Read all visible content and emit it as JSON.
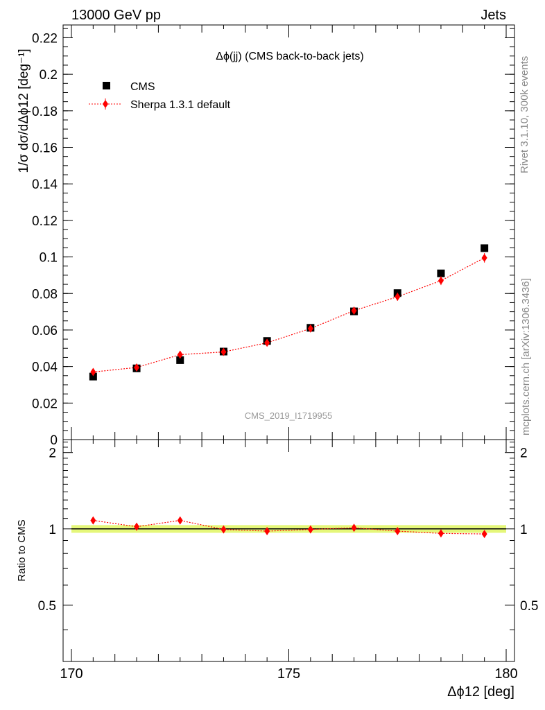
{
  "header": {
    "left": "13000 GeV pp",
    "right": "Jets"
  },
  "side_labels": {
    "rivet": "Rivet 3.1.10,  300k events",
    "mcplots": "mcplots.cern.ch [arXiv:1306.3436]"
  },
  "chart_data": {
    "type": "scatter",
    "title": "Δϕ(jj) (CMS back-to-back jets)",
    "watermark": "CMS_2019_I1719955",
    "xlabel": "Δϕ12 [deg]",
    "ylabel": "1/σ dσ/dΔϕ12 [deg⁻¹]",
    "ratio_ylabel": "Ratio to CMS",
    "xlim": [
      170,
      180
    ],
    "ylim": [
      0,
      0.227
    ],
    "ratio_ylim": [
      0.3,
      2.25
    ],
    "ratio_log_scale": true,
    "x_ticks": [
      "170",
      "175",
      "180"
    ],
    "y_ticks": [
      "0",
      "0.02",
      "0.04",
      "0.06",
      "0.08",
      "0.1",
      "0.12",
      "0.14",
      "0.16",
      "0.18",
      "0.2",
      "0.22"
    ],
    "ratio_ticks": [
      "0.5",
      "1",
      "2"
    ],
    "legend_position": "top-left",
    "x": [
      170.5,
      171.5,
      172.5,
      173.5,
      174.5,
      175.5,
      176.5,
      177.5,
      178.5,
      179.5
    ],
    "series": [
      {
        "name": "CMS",
        "marker": "square",
        "color": "#000000",
        "values": [
          0.0345,
          0.039,
          0.0435,
          0.0482,
          0.054,
          0.0612,
          0.0702,
          0.0802,
          0.091,
          0.1048
        ]
      },
      {
        "name": "Sherpa 1.3.1 default",
        "marker": "diamond",
        "line": "dotted",
        "color": "#ff0000",
        "values": [
          0.037,
          0.0395,
          0.0465,
          0.048,
          0.053,
          0.0608,
          0.0706,
          0.0782,
          0.087,
          0.0995
        ],
        "errors": [
          0.0012,
          0.0012,
          0.0013,
          0.0014,
          0.0016,
          0.0018,
          0.002,
          0.0022,
          0.0024,
          0.0026
        ]
      }
    ],
    "ratio": {
      "band_color": "#e5f77a",
      "values": [
        1.08,
        1.02,
        1.08,
        0.995,
        0.98,
        0.995,
        1.01,
        0.98,
        0.96,
        0.955
      ],
      "errors": [
        0.035,
        0.035,
        0.035,
        0.03,
        0.03,
        0.03,
        0.03,
        0.025,
        0.025,
        0.02
      ]
    }
  }
}
